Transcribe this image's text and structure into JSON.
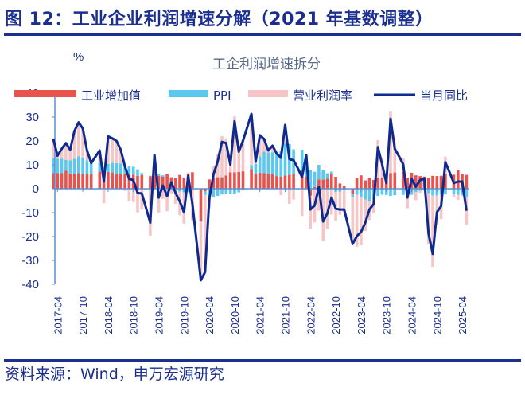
{
  "header": {
    "title": "图 12：工业企业利润增速分解（2021 年基数调整）"
  },
  "footer": {
    "source": "资料来源：Wind，申万宏源研究"
  },
  "chart_data": {
    "type": "bar",
    "title": "工企利润增速拆分",
    "ylabel": "%",
    "xlabel": "",
    "ylim": [
      -40,
      40
    ],
    "yticks": [
      40,
      30,
      20,
      10,
      0,
      -10,
      -20,
      -30,
      -40
    ],
    "xtick_labels": [
      "2017-04",
      "2017-10",
      "2018-04",
      "2018-10",
      "2019-04",
      "2019-10",
      "2020-04",
      "2020-10",
      "2021-04",
      "2021-10",
      "2022-04",
      "2022-10",
      "2023-04",
      "2023-10",
      "2024-04",
      "2024-10",
      "2025-04"
    ],
    "legend_position": "top",
    "grid": false,
    "stacked": true,
    "x": [
      "2017-03",
      "2017-04",
      "2017-05",
      "2017-06",
      "2017-07",
      "2017-08",
      "2017-09",
      "2017-10",
      "2017-11",
      "2017-12",
      "2018-01",
      "2018-02",
      "2018-03",
      "2018-04",
      "2018-05",
      "2018-06",
      "2018-07",
      "2018-08",
      "2018-09",
      "2018-10",
      "2018-11",
      "2018-12",
      "2019-01",
      "2019-02",
      "2019-03",
      "2019-04",
      "2019-05",
      "2019-06",
      "2019-07",
      "2019-08",
      "2019-09",
      "2019-10",
      "2019-11",
      "2019-12",
      "2020-01",
      "2020-02",
      "2020-03",
      "2020-04",
      "2020-05",
      "2020-06",
      "2020-07",
      "2020-08",
      "2020-09",
      "2020-10",
      "2020-11",
      "2020-12",
      "2021-01",
      "2021-02",
      "2021-03",
      "2021-04",
      "2021-05",
      "2021-06",
      "2021-07",
      "2021-08",
      "2021-09",
      "2021-10",
      "2021-11",
      "2021-12",
      "2022-01",
      "2022-02",
      "2022-03",
      "2022-04",
      "2022-05",
      "2022-06",
      "2022-07",
      "2022-08",
      "2022-09",
      "2022-10",
      "2022-11",
      "2022-12",
      "2023-01",
      "2023-02",
      "2023-03",
      "2023-04",
      "2023-05",
      "2023-06",
      "2023-07",
      "2023-08",
      "2023-09",
      "2023-10",
      "2023-11",
      "2023-12",
      "2024-01",
      "2024-02",
      "2024-03",
      "2024-04",
      "2024-05",
      "2024-06",
      "2024-07",
      "2024-08",
      "2024-09",
      "2024-10",
      "2024-11",
      "2024-12",
      "2025-01",
      "2025-02",
      "2025-03",
      "2025-04",
      "2025-05"
    ],
    "series": [
      {
        "name": "工业增加值",
        "kind": "bar",
        "color": "#e8534f",
        "values": [
          6.5,
          6.5,
          6.5,
          7.5,
          6.4,
          6,
          6.6,
          6.2,
          6.1,
          6.2,
          null,
          7.2,
          6,
          7,
          6.8,
          6,
          6,
          6.1,
          5.8,
          5.9,
          5.4,
          5.7,
          null,
          5.3,
          8.5,
          5.4,
          5,
          6.3,
          4.8,
          4.4,
          5.8,
          4.7,
          6.2,
          6.9,
          null,
          -13.5,
          -1.1,
          3.9,
          4.4,
          4.8,
          4.8,
          5.6,
          6.9,
          6.9,
          7,
          7.3,
          null,
          8.2,
          6,
          6.7,
          6.5,
          6.4,
          6.2,
          5.3,
          5,
          5.5,
          5.8,
          6.2,
          null,
          7.5,
          5,
          -2.9,
          0.7,
          3.9,
          3.8,
          4.2,
          6.3,
          5,
          2.2,
          1.3,
          null,
          -2.4,
          4.5,
          5.6,
          3.5,
          4.4,
          3.7,
          4.5,
          4.5,
          4.6,
          6.6,
          6.8,
          null,
          7,
          4.5,
          6.7,
          5.6,
          5.3,
          5.1,
          4.5,
          5.4,
          5.3,
          5.4,
          6.2,
          null,
          5.9,
          7.7,
          6.1,
          5.8
        ]
      },
      {
        "name": "PPI",
        "kind": "bar",
        "color": "#5bc8f0",
        "values": [
          6.5,
          6,
          6,
          4.5,
          5.5,
          6.5,
          7,
          6.9,
          5.8,
          4.9,
          null,
          3.7,
          3.1,
          3.4,
          4.1,
          4.7,
          4.6,
          4.1,
          3.6,
          3.3,
          2.7,
          0.9,
          null,
          0.1,
          0.4,
          0.9,
          0.6,
          0,
          -0.3,
          -0.8,
          -1.2,
          -1.6,
          -1.4,
          -0.5,
          null,
          -0.4,
          -1.5,
          -3.1,
          -3.7,
          -3,
          -2.4,
          -2,
          -2.1,
          -2.1,
          -1.5,
          -0.4,
          null,
          1.7,
          4.4,
          6.8,
          9,
          8.8,
          9,
          9.5,
          10.7,
          13.5,
          12.9,
          10.3,
          null,
          8.8,
          8.3,
          8,
          6.4,
          6.1,
          4.2,
          2.3,
          0.9,
          -1.3,
          -1.3,
          -0.7,
          null,
          -1.2,
          -2.5,
          -3.6,
          -4.6,
          -5.4,
          -4.4,
          -3,
          -2.5,
          -2.6,
          -3,
          -2.7,
          null,
          -2.6,
          -2.8,
          -2.5,
          -1.4,
          -0.8,
          -0.8,
          -1.8,
          -2.8,
          -2.9,
          -2.5,
          -2.3,
          null,
          -2.2,
          -2.5,
          -2.7,
          -3.3
        ]
      },
      {
        "name": "营业利润率",
        "kind": "bar",
        "color": "#f6c6c6",
        "values": [
          8,
          1.3,
          4.2,
          7.1,
          4.4,
          11.6,
          14.2,
          12.1,
          4.1,
          -0.3,
          null,
          5.1,
          -6.1,
          11.5,
          10.2,
          9.3,
          5.7,
          -0.9,
          -5.3,
          -5.6,
          -9.9,
          -8.6,
          null,
          -19.6,
          5.2,
          -10,
          -4.3,
          -9.4,
          -1.8,
          -5.6,
          -9.9,
          -13,
          0.6,
          -12.7,
          null,
          -24.4,
          -32.3,
          -5.1,
          5.3,
          9.7,
          17.2,
          15.5,
          5.3,
          23.4,
          10,
          13.2,
          null,
          21.4,
          0.9,
          8.9,
          5.3,
          0.8,
          2.8,
          -0.1,
          -2.7,
          7.7,
          -6.3,
          -4.6,
          null,
          -11.4,
          0.8,
          -13.8,
          -14.1,
          -9.2,
          -21.7,
          -16.8,
          -10.9,
          -12.1,
          -9.6,
          -9.3,
          null,
          -19.5,
          -21.8,
          -20.1,
          -13.1,
          -7.7,
          -5.7,
          15.9,
          8.2,
          0.4,
          25.7,
          12.6,
          null,
          5.8,
          -5.4,
          -0.1,
          -3.4,
          -0.9,
          0,
          -21.4,
          -29.9,
          -12.2,
          -10.2,
          7.2,
          null,
          -1.3,
          -2.2,
          -0.4,
          -11.7
        ]
      },
      {
        "name": "当月同比",
        "kind": "line",
        "color": "#0d2a8f",
        "values": [
          21,
          13.8,
          16.7,
          19.1,
          16.3,
          24.1,
          27.8,
          25.2,
          16,
          10.8,
          null,
          16,
          3,
          21.9,
          21.1,
          20,
          16.3,
          9.3,
          4.1,
          3.6,
          -1.8,
          -2,
          null,
          -14.2,
          14.1,
          -3.7,
          1.3,
          -3.1,
          2.7,
          -1.7,
          -5.3,
          -9.9,
          5.4,
          -6.3,
          null,
          -38.3,
          -34.9,
          -4.3,
          6,
          11.5,
          19.6,
          19.1,
          10.1,
          28.2,
          15.5,
          20.1,
          null,
          31.3,
          11.3,
          22.4,
          20.8,
          16,
          18,
          14.7,
          13,
          26.7,
          12.4,
          11.9,
          8.6,
          4.9,
          14.1,
          -8.7,
          -7,
          0.8,
          -13.7,
          -10.3,
          -3.7,
          -8.4,
          -8.7,
          -8.7,
          -15.9,
          -23.1,
          -19.8,
          -18.1,
          -14.2,
          -8.7,
          -6.4,
          17.4,
          10.2,
          2.4,
          29.3,
          16.7,
          13.6,
          10.2,
          -3.7,
          4.1,
          0.8,
          3.6,
          4.3,
          -18.7,
          -27.3,
          -9.8,
          -7.3,
          11.1,
          6.9,
          2.4,
          3,
          3,
          -9.2
        ]
      }
    ]
  }
}
